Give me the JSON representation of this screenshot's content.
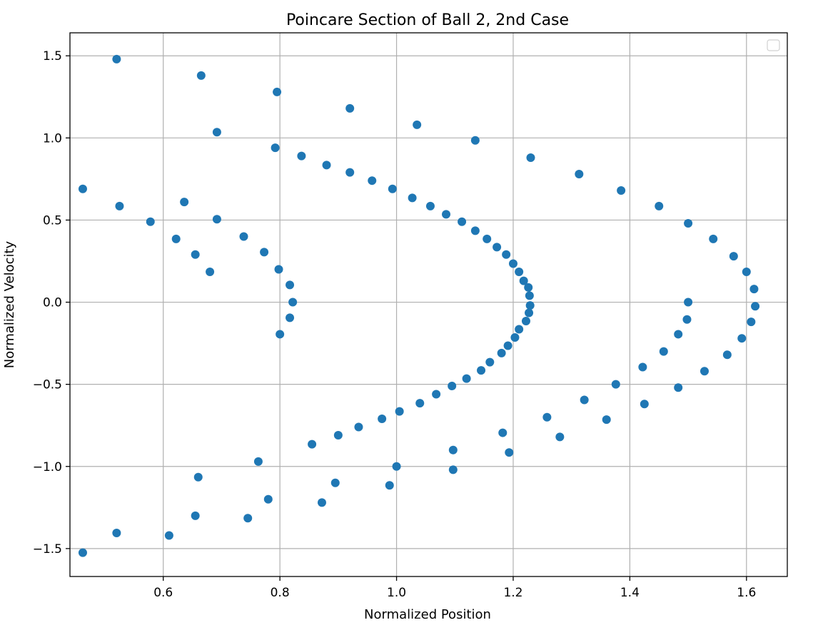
{
  "chart_data": {
    "type": "scatter",
    "title": "Poincare Section of Ball 2, 2nd Case",
    "xlabel": "Normalized Position",
    "ylabel": "Normalized Velocity",
    "xlim": [
      0.44,
      1.67
    ],
    "ylim": [
      -1.67,
      1.64
    ],
    "xticks": [
      0.6,
      0.8,
      1.0,
      1.2,
      1.4,
      1.6
    ],
    "xtick_labels": [
      "0.6",
      "0.8",
      "1.0",
      "1.2",
      "1.4",
      "1.6"
    ],
    "yticks": [
      1.5,
      1.0,
      0.5,
      0.0,
      -0.5,
      -1.0,
      -1.5
    ],
    "ytick_labels": [
      "1.5",
      "1.0",
      "0.5",
      "0.0",
      "−0.5",
      "−1.0",
      "−1.5"
    ],
    "grid": true,
    "legend": "upper right (empty)",
    "color": "#1f77b4",
    "points": [
      [
        0.52,
        1.48
      ],
      [
        0.665,
        1.38
      ],
      [
        0.795,
        1.28
      ],
      [
        0.92,
        1.18
      ],
      [
        1.035,
        1.08
      ],
      [
        1.135,
        0.985
      ],
      [
        1.23,
        0.88
      ],
      [
        0.692,
        1.035
      ],
      [
        0.792,
        0.94
      ],
      [
        0.837,
        0.89
      ],
      [
        0.88,
        0.835
      ],
      [
        0.92,
        0.79
      ],
      [
        0.958,
        0.74
      ],
      [
        0.993,
        0.69
      ],
      [
        1.027,
        0.635
      ],
      [
        1.058,
        0.585
      ],
      [
        1.085,
        0.535
      ],
      [
        1.112,
        0.49
      ],
      [
        1.135,
        0.435
      ],
      [
        1.155,
        0.385
      ],
      [
        1.172,
        0.335
      ],
      [
        1.188,
        0.29
      ],
      [
        1.2,
        0.235
      ],
      [
        1.21,
        0.185
      ],
      [
        1.218,
        0.13
      ],
      [
        1.226,
        0.09
      ],
      [
        1.228,
        0.04
      ],
      [
        1.229,
        -0.02
      ],
      [
        1.227,
        -0.065
      ],
      [
        1.222,
        -0.115
      ],
      [
        1.21,
        -0.165
      ],
      [
        1.203,
        -0.215
      ],
      [
        1.191,
        -0.265
      ],
      [
        1.18,
        -0.31
      ],
      [
        1.16,
        -0.365
      ],
      [
        1.145,
        -0.415
      ],
      [
        1.12,
        -0.465
      ],
      [
        1.095,
        -0.51
      ],
      [
        1.068,
        -0.56
      ],
      [
        1.04,
        -0.615
      ],
      [
        1.005,
        -0.665
      ],
      [
        0.975,
        -0.71
      ],
      [
        0.935,
        -0.76
      ],
      [
        0.9,
        -0.81
      ],
      [
        0.855,
        -0.865
      ],
      [
        0.763,
        -0.97
      ],
      [
        0.66,
        -1.065
      ],
      [
        0.52,
        -1.405
      ],
      [
        0.61,
        -1.42
      ],
      [
        0.655,
        -1.3
      ],
      [
        0.745,
        -1.315
      ],
      [
        0.78,
        -1.2
      ],
      [
        0.872,
        -1.22
      ],
      [
        0.895,
        -1.1
      ],
      [
        0.988,
        -1.115
      ],
      [
        1.0,
        -1.0
      ],
      [
        1.097,
        -1.02
      ],
      [
        1.097,
        -0.9
      ],
      [
        1.193,
        -0.915
      ],
      [
        1.182,
        -0.795
      ],
      [
        1.28,
        -0.82
      ],
      [
        1.258,
        -0.7
      ],
      [
        1.36,
        -0.715
      ],
      [
        1.322,
        -0.595
      ],
      [
        1.425,
        -0.62
      ],
      [
        1.376,
        -0.5
      ],
      [
        1.483,
        -0.52
      ],
      [
        1.422,
        -0.395
      ],
      [
        1.458,
        -0.3
      ],
      [
        1.483,
        -0.195
      ],
      [
        1.498,
        -0.105
      ],
      [
        1.5,
        0.0
      ],
      [
        1.313,
        0.78
      ],
      [
        1.385,
        0.68
      ],
      [
        1.45,
        0.585
      ],
      [
        1.5,
        0.48
      ],
      [
        1.543,
        0.385
      ],
      [
        1.578,
        0.28
      ],
      [
        1.6,
        0.185
      ],
      [
        1.613,
        0.08
      ],
      [
        1.615,
        -0.025
      ],
      [
        1.608,
        -0.12
      ],
      [
        1.592,
        -0.22
      ],
      [
        1.567,
        -0.32
      ],
      [
        1.528,
        -0.42
      ],
      [
        0.462,
        0.69
      ],
      [
        0.525,
        0.585
      ],
      [
        0.578,
        0.49
      ],
      [
        0.636,
        0.61
      ],
      [
        0.622,
        0.385
      ],
      [
        0.655,
        0.29
      ],
      [
        0.68,
        0.185
      ],
      [
        0.692,
        0.505
      ],
      [
        0.738,
        0.4
      ],
      [
        0.773,
        0.305
      ],
      [
        0.798,
        0.2
      ],
      [
        0.817,
        0.105
      ],
      [
        0.822,
        0.0
      ],
      [
        0.817,
        -0.095
      ],
      [
        0.8,
        -0.195
      ],
      [
        0.462,
        -1.525
      ]
    ]
  }
}
